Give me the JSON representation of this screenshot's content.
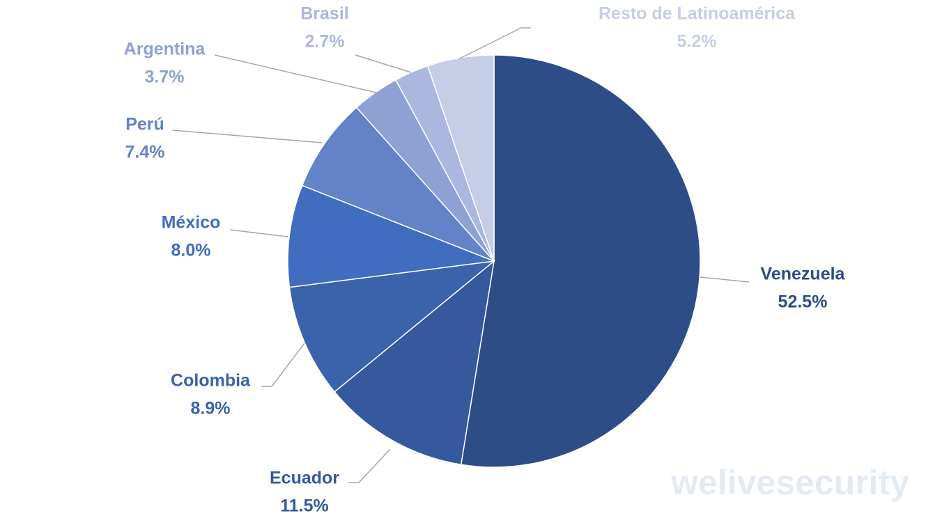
{
  "chart_data": {
    "type": "pie",
    "categories": [
      "Venezuela",
      "Ecuador",
      "Colombia",
      "México",
      "Perú",
      "Argentina",
      "Brasil",
      "Resto de Latinoamérica"
    ],
    "values": [
      52.5,
      11.5,
      8.9,
      8.0,
      7.4,
      3.7,
      2.7,
      5.2
    ],
    "value_labels": [
      "52.5%",
      "11.5%",
      "8.9%",
      "8.0%",
      "7.4%",
      "3.7%",
      "2.7%",
      "5.2%"
    ],
    "colors": [
      "#2e4d87",
      "#35589e",
      "#3a63ac",
      "#406dbf",
      "#6382c8",
      "#8fa1d4",
      "#abb7df",
      "#c6cde6"
    ],
    "watermark": "welivesecurity"
  }
}
